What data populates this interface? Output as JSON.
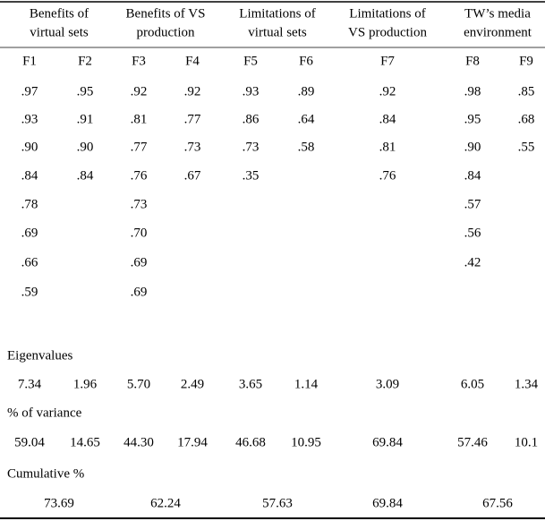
{
  "table": {
    "groups": [
      "Benefits of|virtual sets",
      "Benefits of VS|production",
      "Limitations of|virtual sets",
      "Limitations of|VS production",
      "TW’s media|environment"
    ],
    "group_lines": [
      [
        "Benefits of",
        "virtual sets"
      ],
      [
        "Benefits of VS",
        "production"
      ],
      [
        "Limitations of",
        "virtual sets"
      ],
      [
        "Limitations of",
        "VS production"
      ],
      [
        "TW’s media",
        "environment"
      ]
    ],
    "factors": [
      "F1",
      "F2",
      "F3",
      "F4",
      "F5",
      "F6",
      "F7",
      "F8",
      "F9"
    ],
    "rows": [
      [
        ".97",
        ".95",
        ".92",
        ".92",
        ".93",
        ".89",
        ".92",
        ".98",
        ".85"
      ],
      [
        ".93",
        ".91",
        ".81",
        ".77",
        ".86",
        ".64",
        ".84",
        ".95",
        ".68"
      ],
      [
        ".90",
        ".90",
        ".77",
        ".73",
        ".73",
        ".58",
        ".81",
        ".90",
        ".55"
      ],
      [
        ".84",
        ".84",
        ".76",
        ".67",
        ".35",
        null,
        ".76",
        ".84",
        null
      ],
      [
        ".78",
        null,
        ".73",
        null,
        null,
        null,
        null,
        ".57",
        null
      ],
      [
        ".69",
        null,
        ".70",
        null,
        null,
        null,
        null,
        ".56",
        null
      ],
      [
        ".66",
        null,
        ".69",
        null,
        null,
        null,
        null,
        ".42",
        null
      ],
      [
        ".59",
        null,
        ".69",
        null,
        null,
        null,
        null,
        null,
        null
      ]
    ],
    "eigenvalues_label": "Eigenvalues",
    "eigenvalues": [
      "7.34",
      "1.96",
      "5.70",
      "2.49",
      "3.65",
      "1.14",
      "3.09",
      "6.05",
      "1.34"
    ],
    "variance_label": "% of variance",
    "variance": [
      "59.04",
      "14.65",
      "44.30",
      "17.94",
      "46.68",
      "10.95",
      "69.84",
      "57.46",
      "10.1"
    ],
    "cumulative_label": "Cumulative %",
    "cumulative": [
      "73.69",
      "62.24",
      "57.63",
      "69.84",
      "67.56"
    ]
  }
}
